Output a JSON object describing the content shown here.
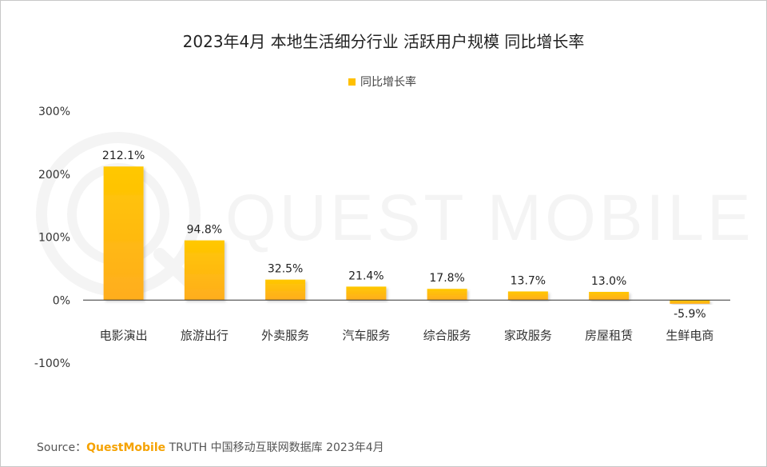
{
  "chart_data": {
    "type": "bar",
    "title": "2023年4月 本地生活细分行业 活跃用户规模 同比增长率",
    "legend": {
      "label": "同比增长率",
      "placement": "top-center"
    },
    "categories": [
      "电影演出",
      "旅游出行",
      "外卖服务",
      "汽车服务",
      "综合服务",
      "家政服务",
      "房屋租赁",
      "生鲜电商"
    ],
    "series": [
      {
        "name": "同比增长率",
        "values": [
          212.1,
          94.8,
          32.5,
          21.4,
          17.8,
          13.7,
          13.0,
          -5.9
        ]
      }
    ],
    "value_labels": [
      "212.1%",
      "94.8%",
      "32.5%",
      "21.4%",
      "17.8%",
      "13.7%",
      "13.0%",
      "-5.9%"
    ],
    "y_ticks": [
      300,
      200,
      100,
      0,
      -100
    ],
    "y_tick_labels": [
      "300%",
      "200%",
      "100%",
      "0%",
      "-100%"
    ],
    "ylim": [
      -100,
      300
    ],
    "grid": false,
    "colors": {
      "bar_top": "#ffc800",
      "bar_bottom": "#ffad1f"
    }
  },
  "watermark": "QUEST MOBILE",
  "source": {
    "prefix": "Source：",
    "brand": "QuestMobile",
    "rest": " TRUTH 中国移动互联网数据库 2023年4月"
  }
}
